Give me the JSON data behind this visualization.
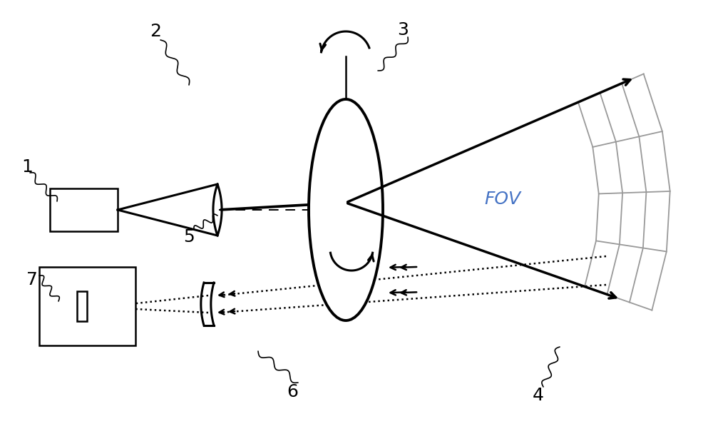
{
  "bg_color": "#ffffff",
  "line_color": "#000000",
  "gray_color": "#999999",
  "blue_color": "#4472c4",
  "fov_text": "FOV",
  "labels": [
    "1",
    "2",
    "3",
    "4",
    "5",
    "6",
    "7"
  ],
  "figsize": [
    10.0,
    5.94
  ],
  "dpi": 100,
  "xlim": [
    0,
    10
  ],
  "ylim": [
    0,
    5.94
  ]
}
